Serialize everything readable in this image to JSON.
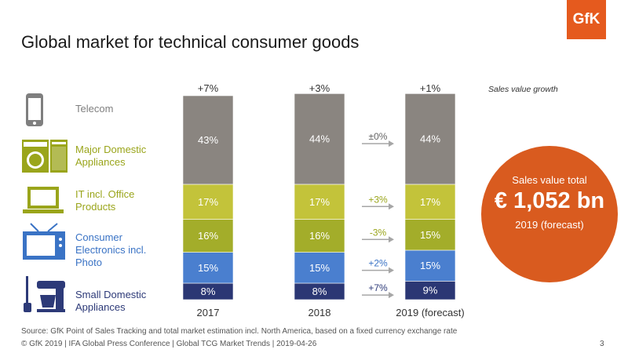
{
  "title": "Global market for technical consumer goods",
  "logo": "GfK",
  "categories": [
    {
      "label": "Telecom",
      "color": "#7f7f7f"
    },
    {
      "label": "Major Domestic Appliances",
      "color": "#9aa51b"
    },
    {
      "label": "IT incl. Office Products",
      "color": "#9aa51b"
    },
    {
      "label": "Consumer Electronics incl. Photo",
      "color": "#3a73c5"
    },
    {
      "label": "Small Domestic Appliances",
      "color": "#2d3a78"
    }
  ],
  "chart_data": {
    "type": "bar",
    "stacked": true,
    "title": "Global market for technical consumer goods",
    "categories": [
      "2017",
      "2018",
      "2019 (forecast)"
    ],
    "growth_top": [
      "+7%",
      "+3%",
      "+1%"
    ],
    "growth_note": "Sales value growth",
    "series": [
      {
        "name": "Small Domestic Appliances",
        "color": "#2b3774",
        "values": [
          8,
          8,
          9
        ],
        "labels": [
          "8%",
          "8%",
          "9%"
        ]
      },
      {
        "name": "Consumer Electronics incl. Photo",
        "color": "#4a7fcf",
        "values": [
          15,
          15,
          15
        ],
        "labels": [
          "15%",
          "15%",
          "15%"
        ]
      },
      {
        "name": "IT incl. Office Products",
        "color": "#a3ad2a",
        "values": [
          16,
          16,
          15
        ],
        "labels": [
          "16%",
          "16%",
          "15%"
        ]
      },
      {
        "name": "Major Domestic Appliances",
        "color": "#c3c33a",
        "values": [
          17,
          17,
          17
        ],
        "labels": [
          "17%",
          "17%",
          "17%"
        ]
      },
      {
        "name": "Telecom",
        "color": "#8a8580",
        "values": [
          43,
          44,
          44
        ],
        "labels": [
          "43%",
          "44%",
          "44%"
        ]
      }
    ],
    "segment_growth": [
      {
        "series": "Telecom",
        "label": "±0%",
        "color": "#666666"
      },
      {
        "series": "Major Domestic Appliances",
        "label": "+3%",
        "color": "#9aa51b"
      },
      {
        "series": "IT incl. Office Products",
        "label": "-3%",
        "color": "#9aa51b"
      },
      {
        "series": "Consumer Electronics incl. Photo",
        "label": "+2%",
        "color": "#3a73c5"
      },
      {
        "series": "Small Domestic Appliances",
        "label": "+7%",
        "color": "#2d3a78"
      }
    ]
  },
  "summary": {
    "line1": "Sales value total",
    "line2": "€ 1,052 bn",
    "line3": "2019 (forecast)"
  },
  "source": "Source: GfK Point of Sales Tracking and total market estimation incl. North America, based on a fixed currency exchange rate",
  "footer": "© GfK 2019 | IFA Global Press Conference | Global TCG Market Trends | 2019-04-26",
  "page_number": "3"
}
